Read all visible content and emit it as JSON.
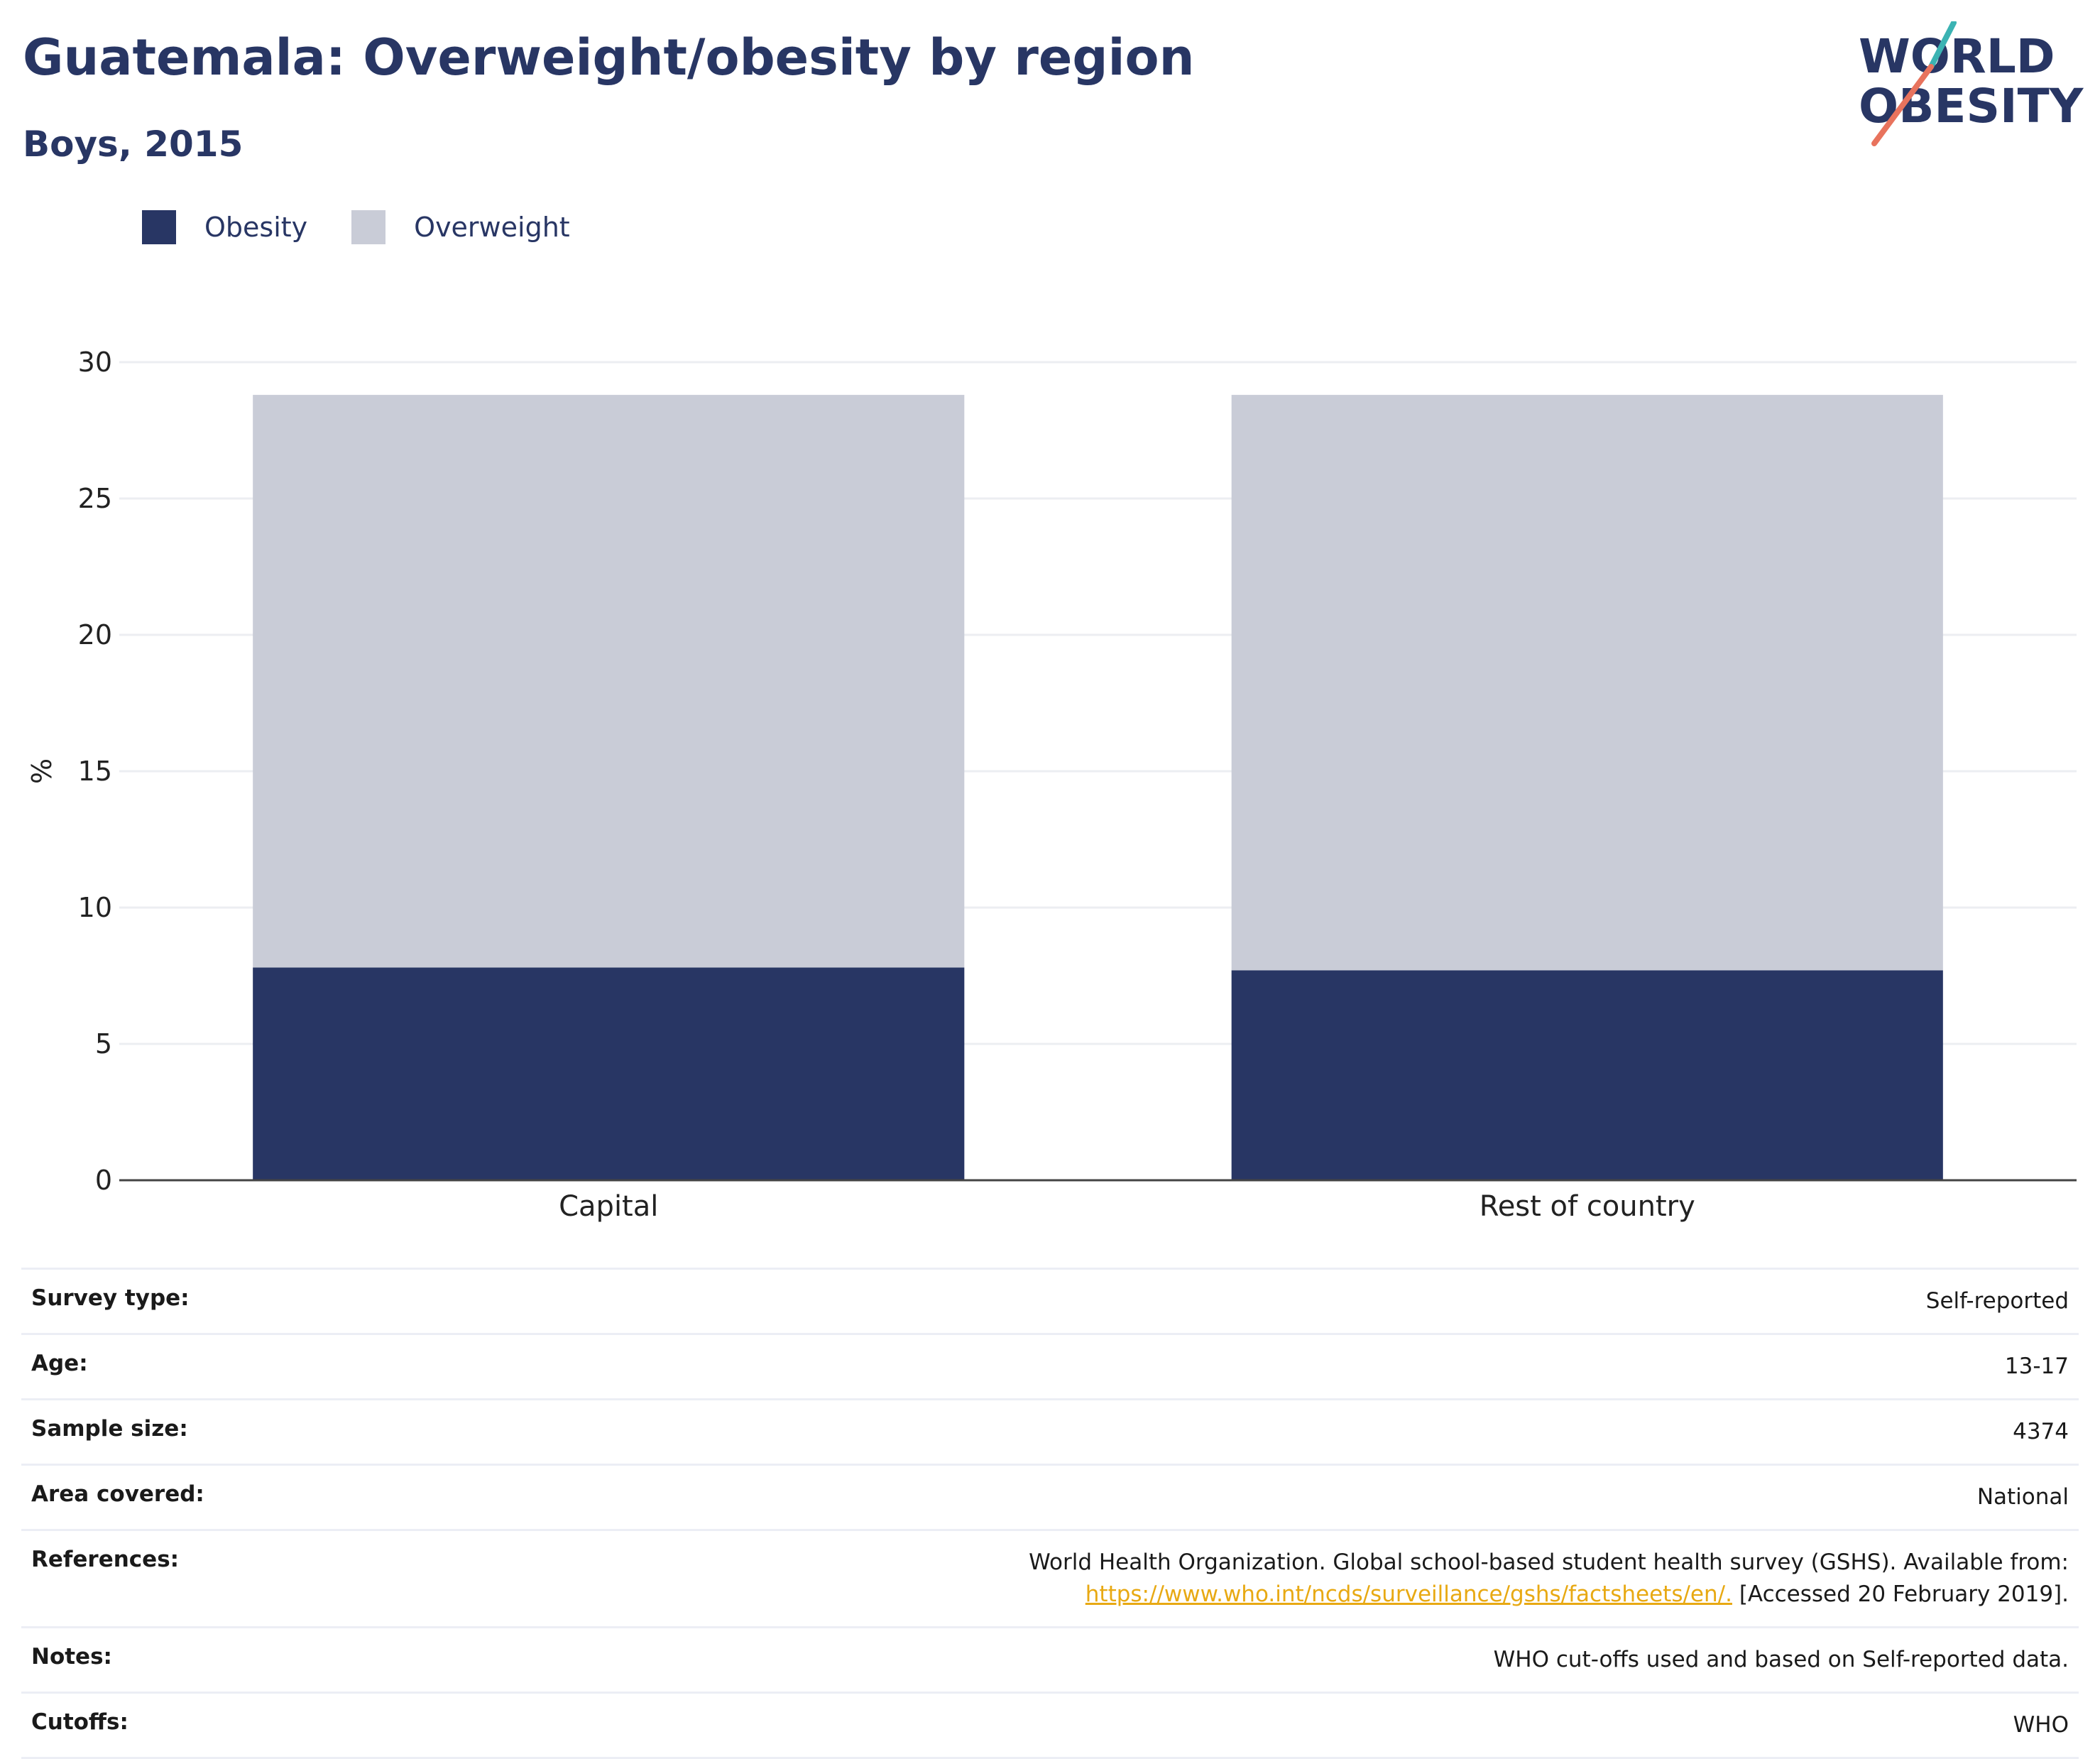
{
  "header": {
    "title": "Guatemala: Overweight/obesity by region",
    "subtitle": "Boys, 2015"
  },
  "logo": {
    "line1": "WORLD",
    "line2": "OBESITY"
  },
  "legend": [
    {
      "label": "Obesity",
      "color": "#283664"
    },
    {
      "label": "Overweight",
      "color": "#c9ccd7"
    }
  ],
  "chart_data": {
    "type": "bar",
    "stacked": true,
    "categories": [
      "Capital",
      "Rest of country"
    ],
    "series": [
      {
        "name": "Obesity",
        "values": [
          7.8,
          7.7
        ],
        "color": "#283664"
      },
      {
        "name": "Overweight",
        "values": [
          21.0,
          21.1
        ],
        "color": "#c9ccd7"
      }
    ],
    "title": "Guatemala: Overweight/obesity by region",
    "subtitle": "Boys, 2015",
    "ylabel": "%",
    "xlabel": "",
    "ylim": [
      0,
      30
    ],
    "yticks": [
      0,
      5,
      10,
      15,
      20,
      25,
      30
    ],
    "grid": true,
    "legend_position": "top-left"
  },
  "info": {
    "survey_type": {
      "label": "Survey type:",
      "value": "Self-reported"
    },
    "age": {
      "label": "Age:",
      "value": "13-17"
    },
    "sample_size": {
      "label": "Sample size:",
      "value": "4374"
    },
    "area_covered": {
      "label": "Area covered:",
      "value": "National"
    },
    "references": {
      "label": "References:",
      "text": "World Health Organization. Global school-based student health survey (GSHS). Available from:",
      "link": "https://www.who.int/ncds/surveillance/gshs/factsheets/en/.",
      "accessed": "[Accessed 20 February 2019]."
    },
    "notes": {
      "label": "Notes:",
      "value": "WHO cut-offs used and based on Self-reported data."
    },
    "cutoffs": {
      "label": "Cutoffs:",
      "value": "WHO"
    }
  }
}
